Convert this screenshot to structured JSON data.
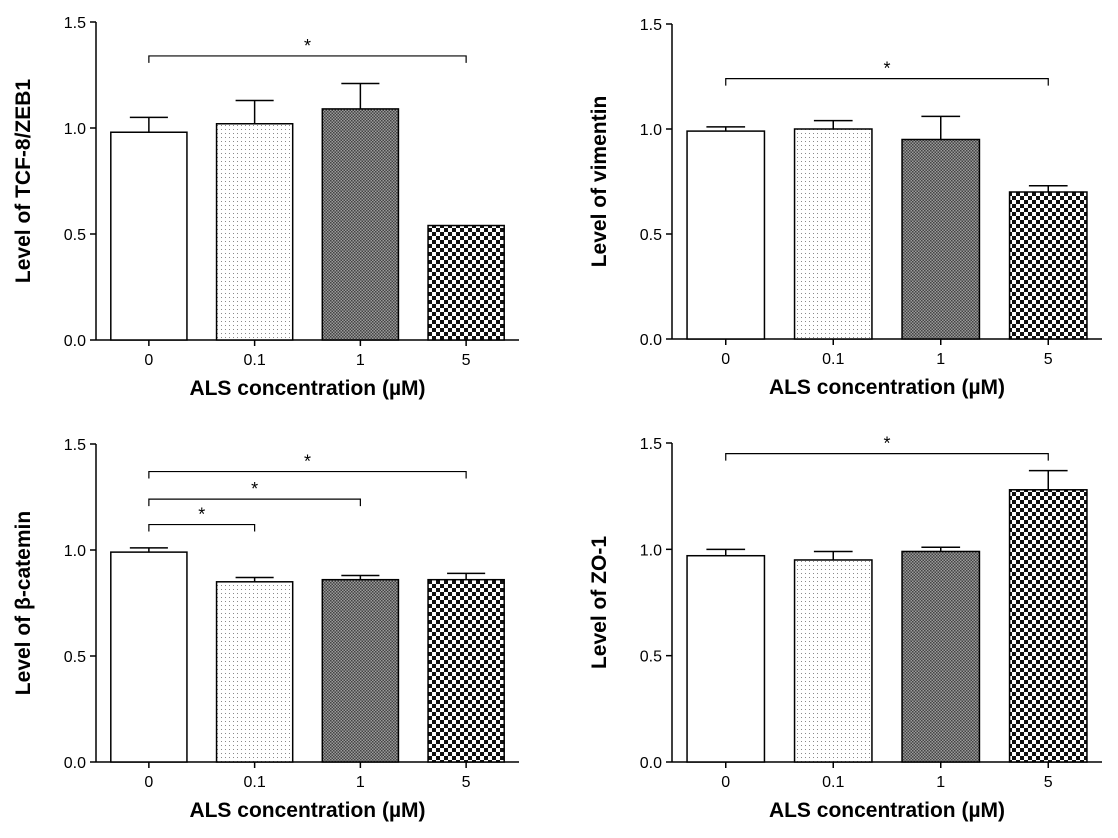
{
  "chart_data": [
    {
      "type": "bar",
      "categories": [
        "0",
        "0.1",
        "1",
        "5"
      ],
      "values": [
        0.98,
        1.02,
        1.09,
        0.54
      ],
      "errors": [
        0.07,
        0.11,
        0.12,
        0.0
      ],
      "ylim": [
        0,
        1.5
      ],
      "yticks": [
        "0.0",
        "0.5",
        "1.0",
        "1.5"
      ],
      "xlabel": "ALS concentration (µM)",
      "ylabel": "Level of TCF-8/ZEB1",
      "significance": [
        {
          "from": 0,
          "to": 3,
          "label": "*",
          "level": 1.34
        }
      ]
    },
    {
      "type": "bar",
      "categories": [
        "0",
        "0.1",
        "1",
        "5"
      ],
      "values": [
        0.99,
        1.0,
        0.95,
        0.7
      ],
      "errors": [
        0.02,
        0.04,
        0.11,
        0.03
      ],
      "ylim": [
        0,
        1.5
      ],
      "yticks": [
        "0.0",
        "0.5",
        "1.0",
        "1.5"
      ],
      "xlabel": "ALS concentration (µM)",
      "ylabel": "Level of vimentin",
      "significance": [
        {
          "from": 0,
          "to": 3,
          "label": "*",
          "level": 1.24
        }
      ]
    },
    {
      "type": "bar",
      "categories": [
        "0",
        "0.1",
        "1",
        "5"
      ],
      "values": [
        0.99,
        0.85,
        0.86,
        0.86
      ],
      "errors": [
        0.02,
        0.02,
        0.02,
        0.03
      ],
      "ylim": [
        0,
        1.5
      ],
      "yticks": [
        "0.0",
        "0.5",
        "1.0",
        "1.5"
      ],
      "xlabel": "ALS concentration (µM)",
      "ylabel": "Level of β-catemin",
      "significance": [
        {
          "from": 0,
          "to": 1,
          "label": "*",
          "level": 1.12
        },
        {
          "from": 0,
          "to": 2,
          "label": "*",
          "level": 1.24
        },
        {
          "from": 0,
          "to": 3,
          "label": "*",
          "level": 1.37
        }
      ]
    },
    {
      "type": "bar",
      "categories": [
        "0",
        "0.1",
        "1",
        "5"
      ],
      "values": [
        0.97,
        0.95,
        0.99,
        1.28
      ],
      "errors": [
        0.03,
        0.04,
        0.02,
        0.09
      ],
      "ylim": [
        0,
        1.5
      ],
      "yticks": [
        "0.0",
        "0.5",
        "1.0",
        "1.5"
      ],
      "xlabel": "ALS concentration (µM)",
      "ylabel": "Level of ZO-1",
      "significance": [
        {
          "from": 0,
          "to": 3,
          "label": "*",
          "level": 1.45
        }
      ]
    }
  ]
}
